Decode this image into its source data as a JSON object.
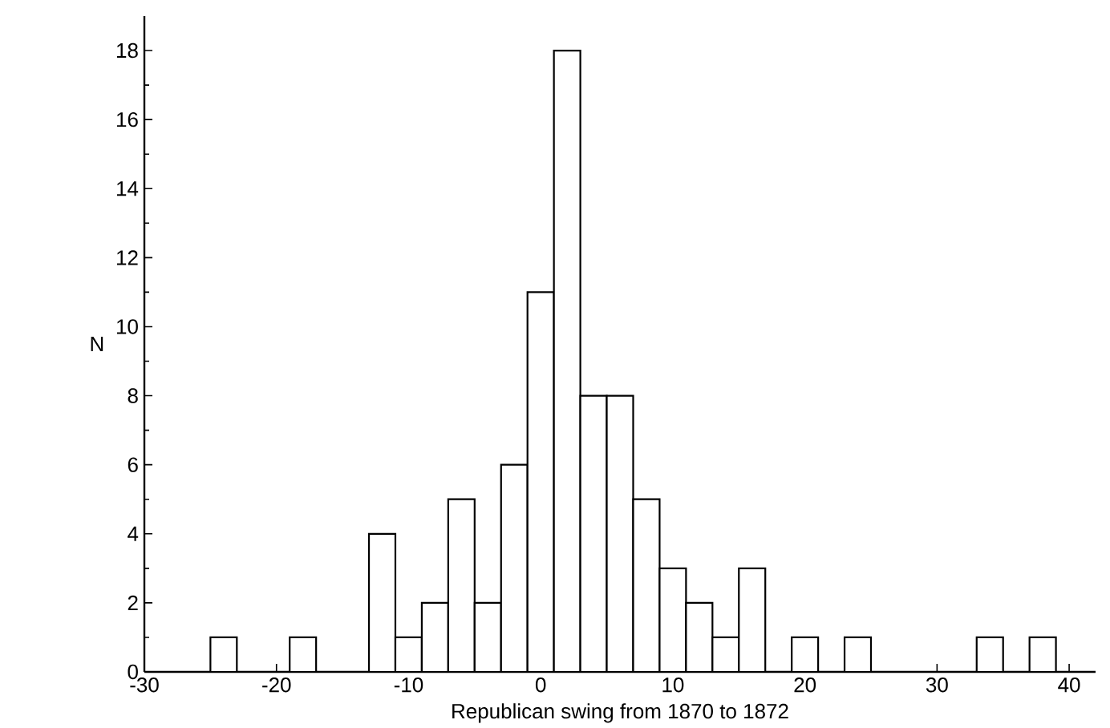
{
  "chart_data": {
    "type": "histogram",
    "xlabel": "Republican swing from 1870 to 1872",
    "ylabel": "N",
    "bins": [
      -25,
      -23,
      -21,
      -19,
      -17,
      -15,
      -13,
      -11,
      -9,
      -7,
      -5,
      -3,
      -1,
      1,
      3,
      5,
      7,
      9,
      11,
      13,
      15,
      17,
      19,
      21,
      23,
      25,
      27,
      29,
      31,
      33,
      35,
      37,
      39
    ],
    "values": [
      1,
      0,
      0,
      1,
      0,
      0,
      4,
      1,
      2,
      5,
      2,
      6,
      11,
      18,
      8,
      8,
      5,
      3,
      2,
      1,
      3,
      0,
      1,
      0,
      1,
      0,
      0,
      0,
      0,
      1,
      0,
      1
    ],
    "color": "#ffffff",
    "xlim": [
      -30,
      42
    ],
    "ylim": [
      0,
      19
    ],
    "xticks": [
      -30,
      -20,
      -10,
      0,
      10,
      20,
      30,
      40
    ],
    "yticks": [
      0,
      2,
      4,
      6,
      8,
      10,
      12,
      14,
      16,
      18
    ],
    "grid": false
  }
}
